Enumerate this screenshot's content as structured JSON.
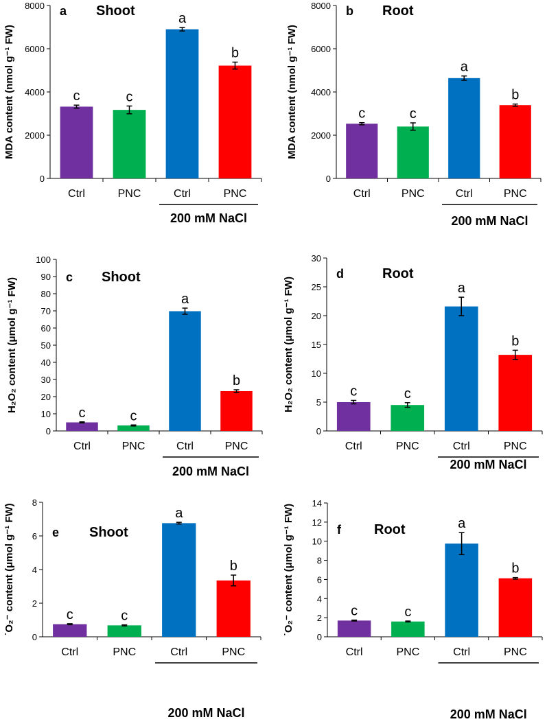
{
  "colors": {
    "ctrl": "#7030A0",
    "pnc": "#00B050",
    "nacl_ctrl": "#0070C0",
    "nacl_pnc": "#FF0000"
  },
  "chart_data": [
    {
      "type": "bar",
      "panel": "a",
      "title": "Shoot",
      "ylabel": "MDA content (nmol g⁻¹ FW)",
      "categories": [
        "Ctrl",
        "PNC",
        "Ctrl",
        "PNC"
      ],
      "group_label": "200 mM NaCl",
      "ylim": [
        0,
        8000
      ],
      "yticks": [
        0,
        2000,
        4000,
        6000,
        8000
      ],
      "values": [
        3320,
        3170,
        6900,
        5220
      ],
      "errors": [
        70,
        180,
        80,
        160
      ],
      "letters": [
        "c",
        "c",
        "a",
        "b"
      ]
    },
    {
      "type": "bar",
      "panel": "b",
      "title": "Root",
      "ylabel": "MDA content (nmol g⁻¹ FW)",
      "categories": [
        "Ctrl",
        "PNC",
        "Ctrl",
        "PNC"
      ],
      "group_label": "200 mM NaCl",
      "ylim": [
        0,
        8000
      ],
      "yticks": [
        0,
        2000,
        4000,
        6000,
        8000
      ],
      "values": [
        2530,
        2400,
        4640,
        3390
      ],
      "errors": [
        50,
        170,
        100,
        50
      ],
      "letters": [
        "c",
        "c",
        "a",
        "b"
      ]
    },
    {
      "type": "bar",
      "panel": "c",
      "title": "Shoot",
      "ylabel": "H₂O₂ content (μmol g⁻¹ FW)",
      "categories": [
        "Ctrl",
        "PNC",
        "Ctrl",
        "PNC"
      ],
      "group_label": "200 mM NaCl",
      "ylim": [
        0,
        100
      ],
      "yticks": [
        0,
        10,
        20,
        30,
        40,
        50,
        60,
        70,
        80,
        90,
        100
      ],
      "values": [
        5,
        3.2,
        69.8,
        23.2
      ],
      "errors": [
        0.3,
        0.3,
        1.8,
        0.8
      ],
      "letters": [
        "c",
        "c",
        "a",
        "b"
      ]
    },
    {
      "type": "bar",
      "panel": "d",
      "title": "Root",
      "ylabel": "H₂O₂ content (μmol g⁻¹ FW)",
      "categories": [
        "Ctrl",
        "PNC",
        "Ctrl",
        "PNC"
      ],
      "group_label": "200 mM NaCl",
      "ylim": [
        0,
        30
      ],
      "yticks": [
        0,
        5,
        10,
        15,
        20,
        25,
        30
      ],
      "values": [
        5,
        4.5,
        21.6,
        13.2
      ],
      "errors": [
        0.3,
        0.4,
        1.6,
        0.8
      ],
      "letters": [
        "c",
        "c",
        "a",
        "b"
      ]
    },
    {
      "type": "bar",
      "panel": "e",
      "title": "Shoot",
      "ylabel": "˙O₂⁻ content (μmol g⁻¹ FW)",
      "categories": [
        "Ctrl",
        "PNC",
        "Ctrl",
        "PNC"
      ],
      "group_label": "200 mM NaCl",
      "ylim": [
        0,
        8
      ],
      "yticks": [
        0,
        2,
        4,
        6,
        8
      ],
      "values": [
        0.75,
        0.68,
        6.76,
        3.35
      ],
      "errors": [
        0.03,
        0.03,
        0.05,
        0.32
      ],
      "letters": [
        "c",
        "c",
        "a",
        "b"
      ]
    },
    {
      "type": "bar",
      "panel": "f",
      "title": "Root",
      "ylabel": "˙O₂⁻ content (μmol g⁻¹ FW)",
      "categories": [
        "Ctrl",
        "PNC",
        "Ctrl",
        "PNC"
      ],
      "group_label": "200 mM NaCl",
      "ylim": [
        0,
        14
      ],
      "yticks": [
        0,
        2,
        4,
        6,
        8,
        10,
        12,
        14
      ],
      "values": [
        1.7,
        1.6,
        9.75,
        6.12
      ],
      "errors": [
        0.05,
        0.05,
        1.15,
        0.08
      ],
      "letters": [
        "c",
        "c",
        "a",
        "b"
      ]
    }
  ]
}
